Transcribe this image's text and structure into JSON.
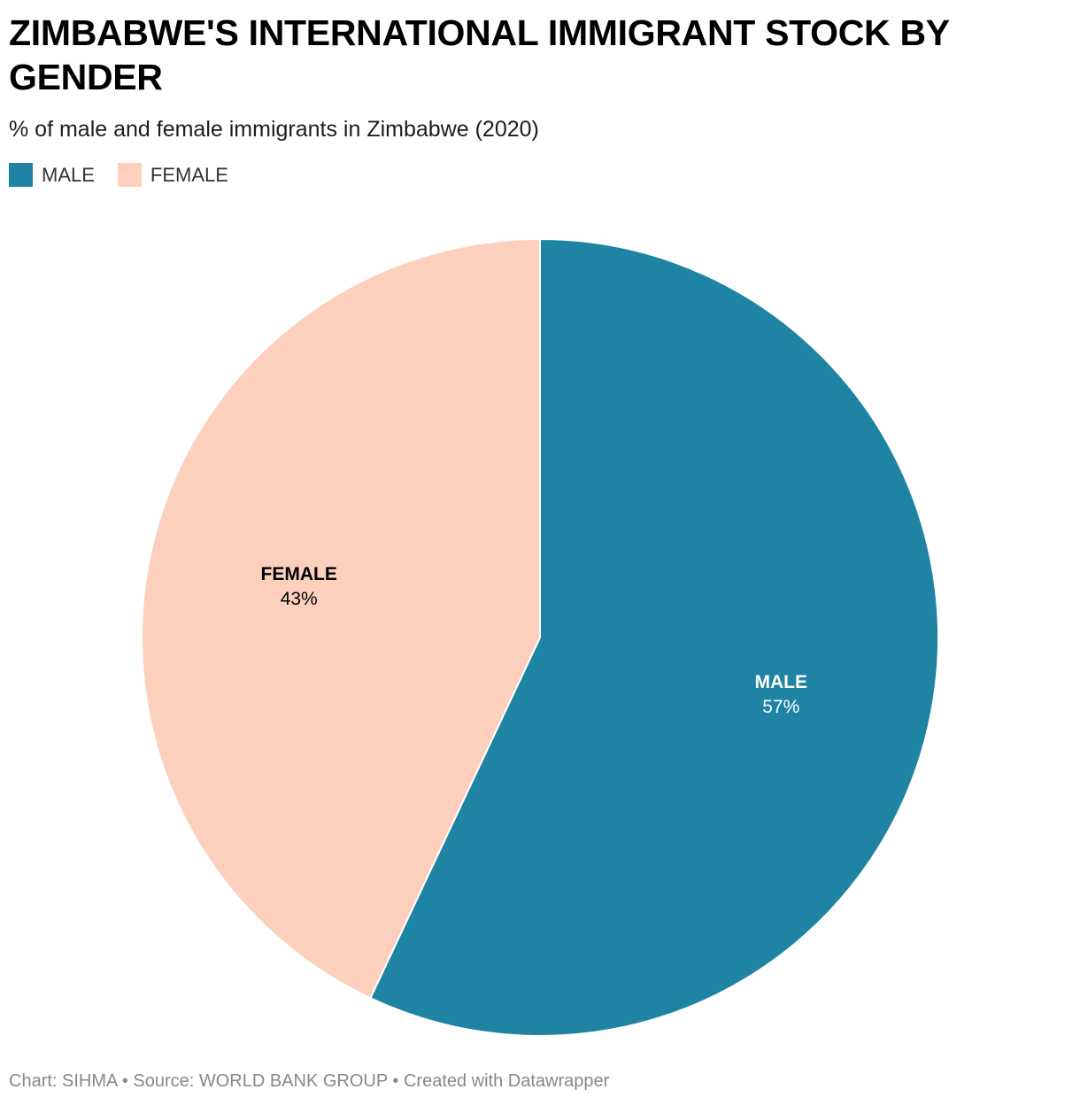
{
  "header": {
    "title": "ZIMBABWE'S INTERNATIONAL IMMIGRANT STOCK BY GENDER",
    "subtitle": "% of male and female immigrants in Zimbabwe (2020)"
  },
  "legend": {
    "items": [
      {
        "label": "MALE",
        "color": "#1f83a3"
      },
      {
        "label": "FEMALE",
        "color": "#fdd0bd"
      }
    ]
  },
  "chart_data": {
    "type": "pie",
    "title": "ZIMBABWE'S INTERNATIONAL IMMIGRANT STOCK BY GENDER",
    "subtitle": "% of male and female immigrants in Zimbabwe (2020)",
    "unit": "%",
    "slices": [
      {
        "label": "MALE",
        "value": 57,
        "display": "57%",
        "color": "#1f83a3",
        "label_color": "#ffffff"
      },
      {
        "label": "FEMALE",
        "value": 43,
        "display": "43%",
        "color": "#fdd0bd",
        "label_color": "#000000"
      }
    ],
    "start_angle": "12 o'clock",
    "direction": "clockwise",
    "legend_position": "top-left"
  },
  "footer": {
    "text": "Chart: SIHMA • Source: WORLD BANK GROUP • Created with Datawrapper"
  }
}
